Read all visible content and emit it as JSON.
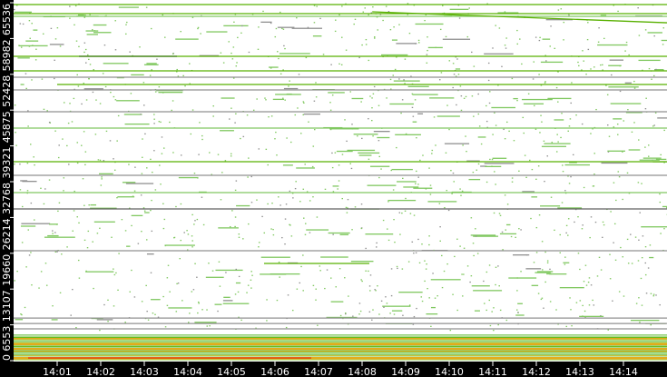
{
  "chart_data": {
    "type": "scatter",
    "title": "",
    "xlabel": "",
    "ylabel": "",
    "xlim": [
      "14:00:00",
      "14:15:00"
    ],
    "ylim": [
      0,
      65536
    ],
    "grid": false,
    "x_ticks": [
      "14:01",
      "14:02",
      "14:03",
      "14:04",
      "14:05",
      "14:06",
      "14:07",
      "14:08",
      "14:09",
      "14:10",
      "14:11",
      "14:12",
      "14:13",
      "14:14"
    ],
    "y_ticks": [
      "0",
      "6553",
      "13107",
      "19660",
      "26214",
      "32768",
      "39321",
      "45875",
      "52428",
      "58982",
      "65536"
    ],
    "colors": {
      "background": "#ffffff",
      "axis": "#000000",
      "low": "#80c860",
      "mid": "#58b000",
      "high": "#e03010",
      "idle": "#909090"
    },
    "segments": [
      {
        "port": 65200,
        "start": "14:00:00",
        "end": "14:15:00",
        "color": "#58b000"
      },
      {
        "port": 63540,
        "start": "14:00:00",
        "end": "14:15:00",
        "color": "#58b000"
      },
      {
        "port": 63040,
        "start": "14:00:00",
        "end": "14:15:00",
        "color": "#80c860"
      },
      {
        "port_start": 63870,
        "port_end": 61870,
        "start": "14:08:14",
        "end": "14:15:00",
        "color": "#58b000"
      },
      {
        "port": 55720,
        "start": "14:00:00",
        "end": "14:15:00",
        "color": "#58b000"
      },
      {
        "port": 55720,
        "start": "14:01:30",
        "end": "14:03:45",
        "color": "#3a7a10"
      },
      {
        "port": 53060,
        "start": "14:00:00",
        "end": "14:15:00",
        "color": "#58b000"
      },
      {
        "port": 51900,
        "start": "14:00:00",
        "end": "14:15:00",
        "color": "#909090"
      },
      {
        "port": 50570,
        "start": "14:01:00",
        "end": "14:15:00",
        "color": "#58b000"
      },
      {
        "port": 49570,
        "start": "14:00:00",
        "end": "14:15:00",
        "color": "#909090"
      },
      {
        "port": 45580,
        "start": "14:00:00",
        "end": "14:15:00",
        "color": "#909090"
      },
      {
        "port": 42580,
        "start": "14:00:00",
        "end": "14:15:00",
        "color": "#80c860"
      },
      {
        "port": 36430,
        "start": "14:00:00",
        "end": "14:15:00",
        "color": "#58b000"
      },
      {
        "port": 33930,
        "start": "14:00:00",
        "end": "14:15:00",
        "color": "#909090"
      },
      {
        "port": 30770,
        "start": "14:00:00",
        "end": "14:15:00",
        "color": "#80c860"
      },
      {
        "port": 27780,
        "start": "14:00:00",
        "end": "14:15:00",
        "color": "#606060"
      },
      {
        "port": 20130,
        "start": "14:00:00",
        "end": "14:15:00",
        "color": "#909090"
      },
      {
        "port": 17800,
        "start": "14:05:45",
        "end": "14:08:10",
        "color": "#58b000"
      },
      {
        "port": 7800,
        "start": "14:00:00",
        "end": "14:15:00",
        "color": "#909090"
      },
      {
        "port": 6800,
        "start": "14:00:00",
        "end": "14:15:00",
        "color": "#909090"
      },
      {
        "port": 5820,
        "start": "14:00:00",
        "end": "14:15:00",
        "color": "#909090"
      },
      {
        "port": 500,
        "start": "14:00:20",
        "end": "14:06:50",
        "color": "#e03010"
      }
    ],
    "dense_band": {
      "port_min": 0,
      "port_max": 4800,
      "start": "14:00:00",
      "end": "14:15:00",
      "color": "#80c860"
    }
  }
}
